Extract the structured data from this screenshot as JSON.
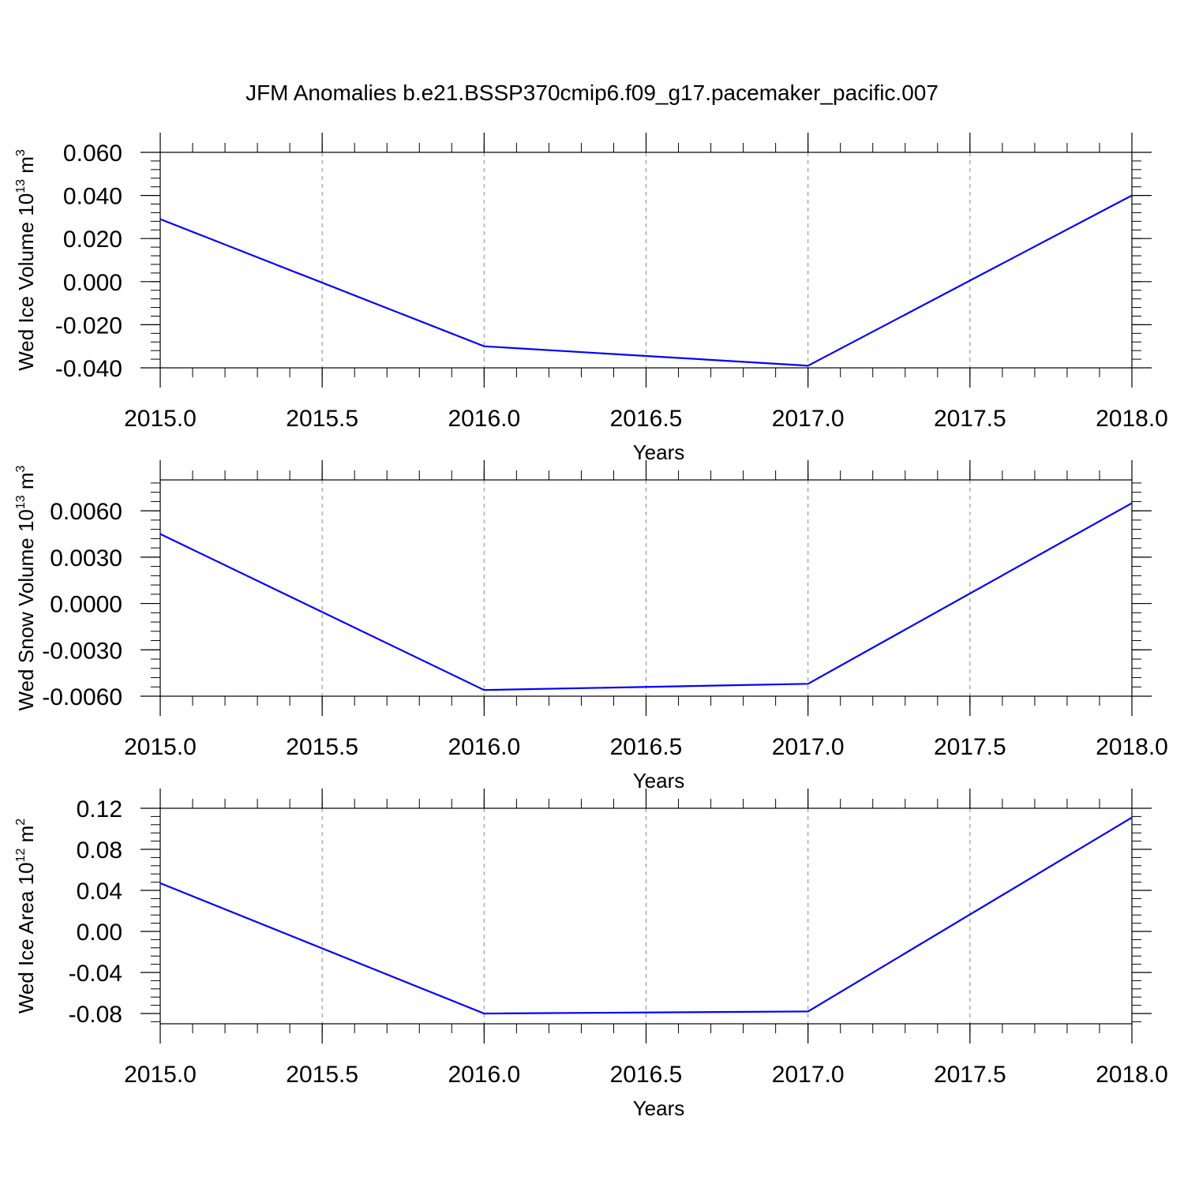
{
  "figure": {
    "title": "JFM Anomalies b.e21.BSSP370cmip6.f09_g17.pacemaker_pacific.007"
  },
  "chart_data": [
    {
      "type": "line",
      "ylabel": "Wed Ice Volume 10",
      "ylabel_exp": "13",
      "ylabel_unit": " m",
      "ylabel_unit_exp": "3",
      "xlabel": "Years",
      "x": [
        2015.0,
        2016.0,
        2017.0,
        2018.0
      ],
      "series": [
        {
          "values": [
            0.029,
            -0.03,
            -0.039,
            0.04
          ],
          "color": "#0000ff"
        }
      ],
      "xlim": [
        2015.0,
        2018.0
      ],
      "ylim": [
        -0.04,
        0.06
      ],
      "xticks": [
        2015.0,
        2015.5,
        2016.0,
        2016.5,
        2017.0,
        2017.5,
        2018.0
      ],
      "xtick_labels": [
        "2015.0",
        "2015.5",
        "2016.0",
        "2016.5",
        "2017.0",
        "2017.5",
        "2018.0"
      ],
      "yticks": [
        -0.04,
        -0.02,
        0.0,
        0.02,
        0.04,
        0.06
      ],
      "ytick_labels": [
        "-0.040",
        "-0.020",
        "0.000",
        "0.020",
        "0.040",
        "0.060"
      ],
      "grid": "vertical dashed at major x ticks"
    },
    {
      "type": "line",
      "ylabel": "Wed Snow Volume 10",
      "ylabel_exp": "13",
      "ylabel_unit": " m",
      "ylabel_unit_exp": "3",
      "xlabel": "Years",
      "x": [
        2015.0,
        2016.0,
        2017.0,
        2018.0
      ],
      "series": [
        {
          "values": [
            0.0045,
            -0.0056,
            -0.0052,
            0.0065
          ],
          "color": "#0000ff"
        }
      ],
      "xlim": [
        2015.0,
        2018.0
      ],
      "ylim": [
        -0.006,
        0.008
      ],
      "xticks": [
        2015.0,
        2015.5,
        2016.0,
        2016.5,
        2017.0,
        2017.5,
        2018.0
      ],
      "xtick_labels": [
        "2015.0",
        "2015.5",
        "2016.0",
        "2016.5",
        "2017.0",
        "2017.5",
        "2018.0"
      ],
      "yticks": [
        -0.006,
        -0.003,
        0.0,
        0.003,
        0.006
      ],
      "ytick_labels": [
        "-0.0060",
        "-0.0030",
        "0.0000",
        "0.0030",
        "0.0060"
      ],
      "grid": "vertical dashed at major x ticks"
    },
    {
      "type": "line",
      "ylabel": "Wed Ice Area 10",
      "ylabel_exp": "12",
      "ylabel_unit": " m",
      "ylabel_unit_exp": "2",
      "xlabel": "Years",
      "x": [
        2015.0,
        2016.0,
        2017.0,
        2018.0
      ],
      "series": [
        {
          "values": [
            0.047,
            -0.08,
            -0.078,
            0.111
          ],
          "color": "#0000ff"
        }
      ],
      "xlim": [
        2015.0,
        2018.0
      ],
      "ylim": [
        -0.09,
        0.12
      ],
      "xticks": [
        2015.0,
        2015.5,
        2016.0,
        2016.5,
        2017.0,
        2017.5,
        2018.0
      ],
      "xtick_labels": [
        "2015.0",
        "2015.5",
        "2016.0",
        "2016.5",
        "2017.0",
        "2017.5",
        "2018.0"
      ],
      "yticks": [
        -0.08,
        -0.04,
        0.0,
        0.04,
        0.08,
        0.12
      ],
      "ytick_labels": [
        "-0.08",
        "-0.04",
        "0.00",
        "0.04",
        "0.08",
        "0.12"
      ],
      "grid": "vertical dashed at major x ticks"
    }
  ]
}
